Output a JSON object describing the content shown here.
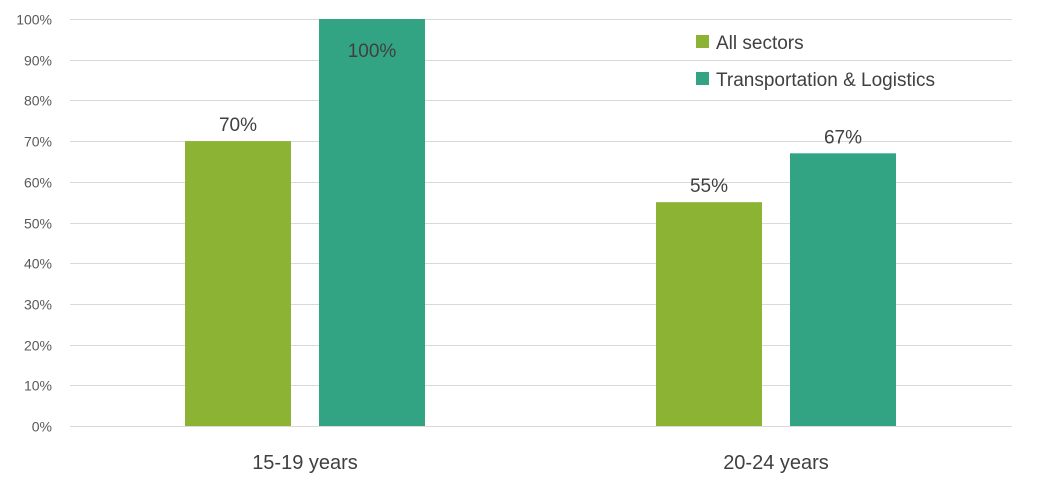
{
  "chart_data": {
    "type": "bar",
    "title": "",
    "xlabel": "",
    "ylabel": "",
    "categories": [
      "15-19 years",
      "20-24 years"
    ],
    "series": [
      {
        "name": "All sectors",
        "color": "#8db334",
        "values": [
          70,
          55
        ],
        "labels": [
          "70%",
          "55%"
        ]
      },
      {
        "name": "Transportation & Logistics",
        "color": "#33a483",
        "values": [
          100,
          67
        ],
        "labels": [
          "100%",
          "67%"
        ]
      }
    ],
    "ylim": [
      0,
      100
    ],
    "yticks": [
      0,
      10,
      20,
      30,
      40,
      50,
      60,
      70,
      80,
      90,
      100
    ],
    "ytick_labels": [
      "0%",
      "10%",
      "20%",
      "30%",
      "40%",
      "50%",
      "60%",
      "70%",
      "80%",
      "90%",
      "100%"
    ],
    "grid": true,
    "legend_position": "top-right"
  }
}
